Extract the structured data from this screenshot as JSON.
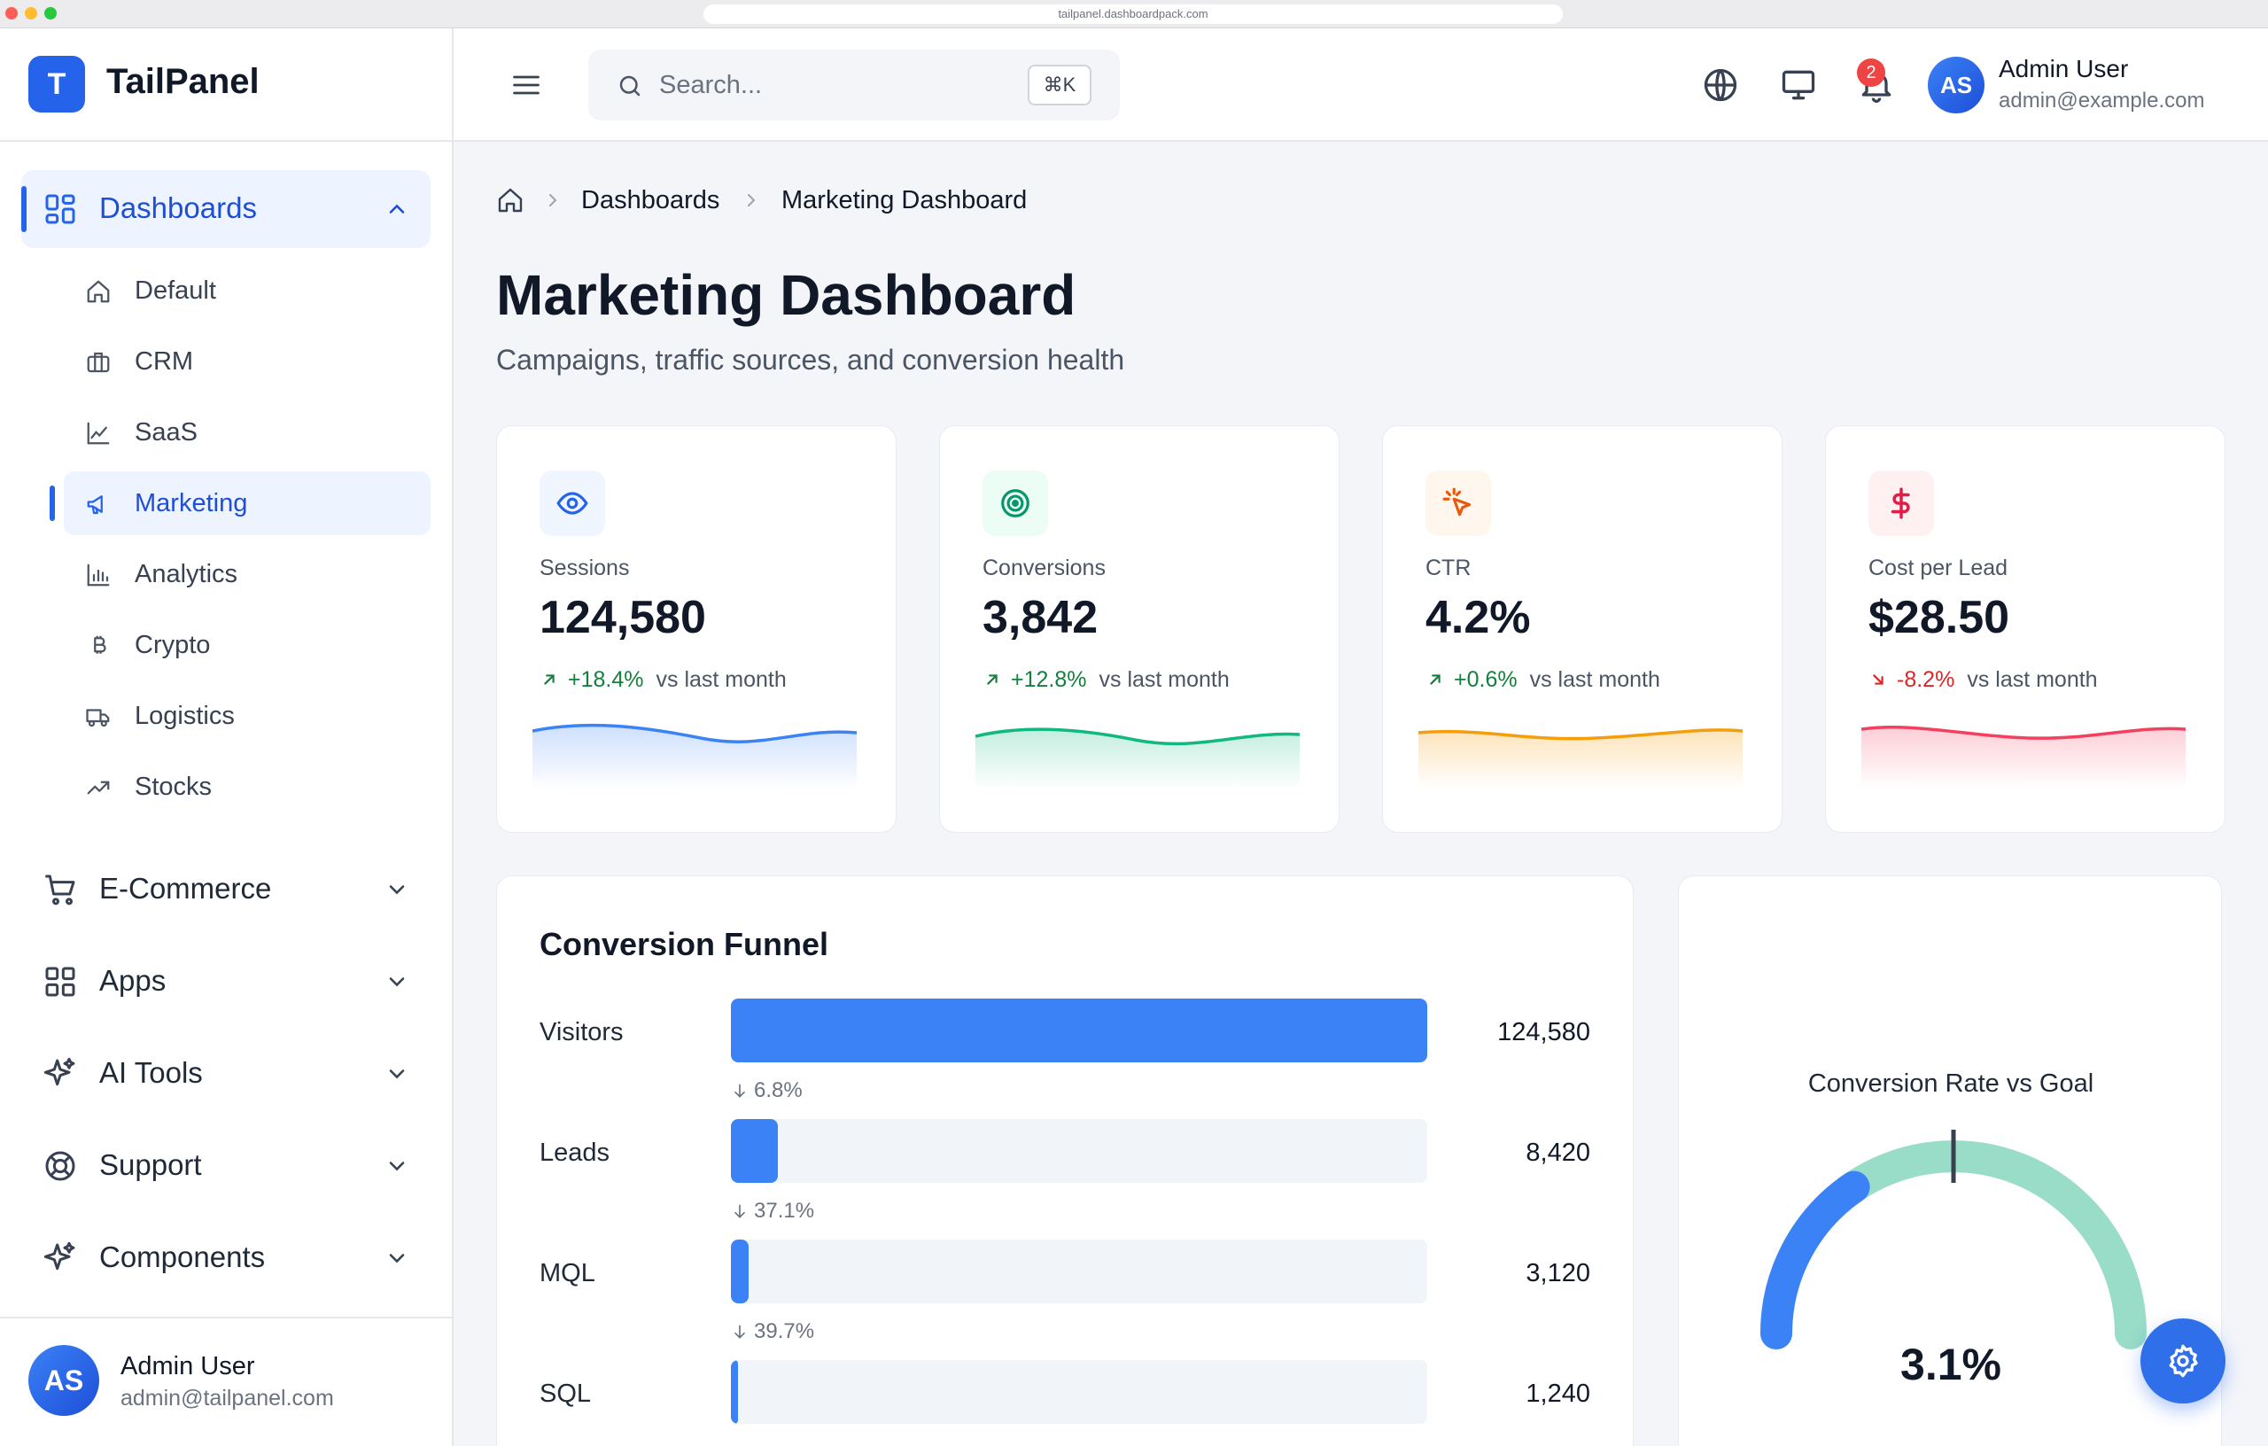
{
  "browser": {
    "url": "tailpanel.dashboardpack.com"
  },
  "brand": {
    "logo_letter": "T",
    "name": "TailPanel"
  },
  "sidebar": {
    "dashboards": {
      "label": "Dashboards",
      "items": [
        {
          "label": "Default",
          "icon": "home-icon"
        },
        {
          "label": "CRM",
          "icon": "briefcase-icon"
        },
        {
          "label": "SaaS",
          "icon": "line-chart-icon"
        },
        {
          "label": "Marketing",
          "icon": "megaphone-icon",
          "active": true
        },
        {
          "label": "Analytics",
          "icon": "bar-chart-icon"
        },
        {
          "label": "Crypto",
          "icon": "bitcoin-icon"
        },
        {
          "label": "Logistics",
          "icon": "truck-icon"
        },
        {
          "label": "Stocks",
          "icon": "trending-up-icon"
        }
      ]
    },
    "groups": [
      {
        "label": "E-Commerce",
        "icon": "cart-icon"
      },
      {
        "label": "Apps",
        "icon": "grid-icon"
      },
      {
        "label": "AI Tools",
        "icon": "sparkles-icon"
      },
      {
        "label": "Support",
        "icon": "lifebuoy-icon"
      },
      {
        "label": "Components",
        "icon": "sparkles-icon"
      }
    ],
    "user": {
      "initials": "AS",
      "name": "Admin User",
      "email": "admin@tailpanel.com"
    }
  },
  "header": {
    "search_placeholder": "Search...",
    "shortcut": "⌘K",
    "notification_count": "2",
    "user": {
      "initials": "AS",
      "name": "Admin User",
      "email": "admin@example.com"
    }
  },
  "breadcrumb": {
    "level1": "Dashboards",
    "level2": "Marketing Dashboard"
  },
  "page": {
    "title": "Marketing Dashboard",
    "subtitle": "Campaigns, traffic sources, and conversion health"
  },
  "stats": [
    {
      "label": "Sessions",
      "value": "124,580",
      "delta": "+18.4%",
      "compare": "vs last month",
      "direction": "up",
      "color": "#3b82f6",
      "icon": "eye-icon",
      "icon_bg": "#eff6ff"
    },
    {
      "label": "Conversions",
      "value": "3,842",
      "delta": "+12.8%",
      "compare": "vs last month",
      "direction": "up",
      "color": "#10b981",
      "icon": "target-icon",
      "icon_bg": "#ecfdf5"
    },
    {
      "label": "CTR",
      "value": "4.2%",
      "delta": "+0.6%",
      "compare": "vs last month",
      "direction": "up",
      "color": "#f59e0b",
      "icon": "cursor-click-icon",
      "icon_bg": "#fff7ed"
    },
    {
      "label": "Cost per Lead",
      "value": "$28.50",
      "delta": "-8.2%",
      "compare": "vs last month",
      "direction": "down",
      "color": "#f43f5e",
      "icon": "dollar-icon",
      "icon_bg": "#fff1f2"
    }
  ],
  "funnel": {
    "title": "Conversion Funnel",
    "stages": [
      {
        "label": "Visitors",
        "value": "124,580",
        "fraction": 1.0,
        "drop": "6.8%"
      },
      {
        "label": "Leads",
        "value": "8,420",
        "fraction": 0.068,
        "drop": "37.1%"
      },
      {
        "label": "MQL",
        "value": "3,120",
        "fraction": 0.025,
        "drop": "39.7%"
      },
      {
        "label": "SQL",
        "value": "1,240",
        "fraction": 0.01
      }
    ]
  },
  "gauge": {
    "title": "Conversion Rate vs Goal",
    "value_label": "3.1%",
    "fraction": 0.31,
    "goal_fraction": 0.5
  },
  "colors": {
    "accent": "#2563eb",
    "up": "#15803d",
    "down": "#dc2626",
    "gauge_track": "#99dcc7"
  }
}
